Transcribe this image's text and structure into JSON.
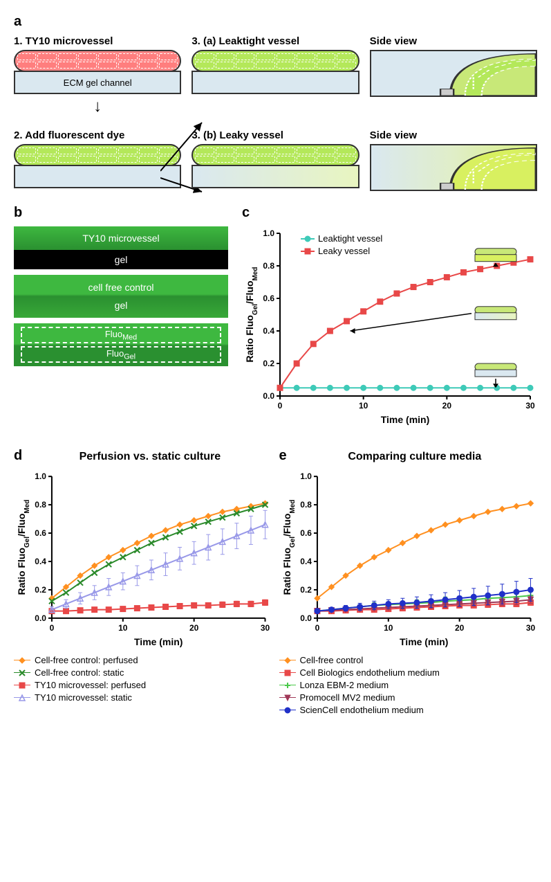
{
  "panelA": {
    "label": "a",
    "step1": {
      "title": "1. TY10 microvessel",
      "ecm_label": "ECM gel channel",
      "vessel_color": "#f88"
    },
    "step2": {
      "title": "2. Add fluorescent dye",
      "vessel_color": "#b4e85a"
    },
    "step3a": {
      "title": "3. (a) Leaktight vessel",
      "side_label": "Side view",
      "vessel_color": "#b4e85a"
    },
    "step3b": {
      "title": "3. (b) Leaky vessel",
      "side_label": "Side view",
      "vessel_color": "#b4e85a"
    }
  },
  "panelB": {
    "label": "b",
    "img1_top": "TY10 microvessel",
    "img1_bottom": "gel",
    "img2_top": "cell free control",
    "img2_bottom": "gel",
    "img3_top": "Fluo",
    "img3_top_sub": "Med",
    "img3_bottom": "Fluo",
    "img3_bottom_sub": "Gel",
    "green_bright": "#3eb840",
    "green_dark": "#1a7020"
  },
  "panelC": {
    "label": "c",
    "ylabel": "Ratio Fluo",
    "ylabel_sub1": "Gel",
    "ylabel_mid": "/Fluo",
    "ylabel_sub2": "Med",
    "xlabel": "Time (min)",
    "xlim": [
      0,
      30
    ],
    "ylim": [
      0,
      1.0
    ],
    "xtick_step": 10,
    "ytick_step": 0.2,
    "x_values": [
      0,
      2,
      4,
      6,
      8,
      10,
      12,
      14,
      16,
      18,
      20,
      22,
      24,
      26,
      28,
      30
    ],
    "series": [
      {
        "name": "Leaktight vessel",
        "color": "#3ecab8",
        "marker": "circle",
        "y": [
          0.05,
          0.05,
          0.05,
          0.05,
          0.05,
          0.05,
          0.05,
          0.05,
          0.05,
          0.05,
          0.05,
          0.05,
          0.05,
          0.05,
          0.05,
          0.05
        ]
      },
      {
        "name": "Leaky vessel",
        "color": "#e84848",
        "marker": "square",
        "y": [
          0.05,
          0.2,
          0.32,
          0.4,
          0.46,
          0.52,
          0.58,
          0.63,
          0.67,
          0.7,
          0.73,
          0.76,
          0.78,
          0.8,
          0.82,
          0.84
        ]
      }
    ]
  },
  "panelD": {
    "label": "d",
    "title": "Perfusion vs. static culture",
    "ylabel": "Ratio Fluo",
    "ylabel_sub1": "Gel",
    "ylabel_mid": "/Fluo",
    "ylabel_sub2": "Med",
    "xlabel": "Time (min)",
    "xlim": [
      0,
      30
    ],
    "ylim": [
      0,
      1.0
    ],
    "xtick_step": 10,
    "ytick_step": 0.2,
    "x_values": [
      0,
      2,
      4,
      6,
      8,
      10,
      12,
      14,
      16,
      18,
      20,
      22,
      24,
      26,
      28,
      30
    ],
    "series": [
      {
        "name": "Cell-free control: perfused",
        "color": "#ff9020",
        "marker": "diamond",
        "y": [
          0.14,
          0.22,
          0.3,
          0.37,
          0.43,
          0.48,
          0.53,
          0.58,
          0.62,
          0.66,
          0.69,
          0.72,
          0.75,
          0.77,
          0.79,
          0.81
        ],
        "err": [
          0.0,
          0.0,
          0.0,
          0.0,
          0.0,
          0.0,
          0.0,
          0.0,
          0.0,
          0.0,
          0.0,
          0.0,
          0.0,
          0.0,
          0.0,
          0.0
        ]
      },
      {
        "name": "Cell-free control: static",
        "color": "#2a8a2a",
        "marker": "x",
        "y": [
          0.12,
          0.18,
          0.25,
          0.32,
          0.38,
          0.43,
          0.48,
          0.53,
          0.57,
          0.61,
          0.65,
          0.68,
          0.71,
          0.74,
          0.77,
          0.8
        ],
        "err": [
          0.0,
          0.0,
          0.0,
          0.0,
          0.0,
          0.0,
          0.0,
          0.0,
          0.0,
          0.0,
          0.0,
          0.0,
          0.0,
          0.0,
          0.0,
          0.0
        ]
      },
      {
        "name": "TY10 microvessel: perfused",
        "color": "#e84848",
        "marker": "square",
        "y": [
          0.05,
          0.05,
          0.055,
          0.06,
          0.06,
          0.065,
          0.07,
          0.075,
          0.08,
          0.085,
          0.09,
          0.09,
          0.095,
          0.1,
          0.1,
          0.11
        ],
        "err": [
          0.01,
          0.01,
          0.01,
          0.01,
          0.01,
          0.01,
          0.01,
          0.01,
          0.01,
          0.01,
          0.01,
          0.01,
          0.02,
          0.02,
          0.02,
          0.02
        ]
      },
      {
        "name": "TY10 microvessel: static",
        "color": "#9898e8",
        "marker": "triangle",
        "y": [
          0.06,
          0.1,
          0.14,
          0.18,
          0.22,
          0.26,
          0.3,
          0.34,
          0.38,
          0.42,
          0.46,
          0.5,
          0.54,
          0.58,
          0.62,
          0.66
        ],
        "err": [
          0.02,
          0.03,
          0.04,
          0.05,
          0.06,
          0.06,
          0.07,
          0.07,
          0.08,
          0.08,
          0.08,
          0.09,
          0.09,
          0.09,
          0.1,
          0.1
        ]
      }
    ]
  },
  "panelE": {
    "label": "e",
    "title": "Comparing culture media",
    "ylabel": "Ratio Fluo",
    "ylabel_sub1": "Gel",
    "ylabel_mid": "/Fluo",
    "ylabel_sub2": "Med",
    "xlabel": "Time (min)",
    "xlim": [
      0,
      30
    ],
    "ylim": [
      0,
      1.0
    ],
    "xtick_step": 10,
    "ytick_step": 0.2,
    "x_values": [
      0,
      2,
      4,
      6,
      8,
      10,
      12,
      14,
      16,
      18,
      20,
      22,
      24,
      26,
      28,
      30
    ],
    "series": [
      {
        "name": "Cell-free control",
        "color": "#ff9020",
        "marker": "diamond",
        "y": [
          0.14,
          0.22,
          0.3,
          0.37,
          0.43,
          0.48,
          0.53,
          0.58,
          0.62,
          0.66,
          0.69,
          0.72,
          0.75,
          0.77,
          0.79,
          0.81
        ],
        "err": [
          0.0,
          0.0,
          0.0,
          0.0,
          0.0,
          0.0,
          0.0,
          0.0,
          0.0,
          0.0,
          0.0,
          0.0,
          0.0,
          0.0,
          0.0,
          0.0
        ]
      },
      {
        "name": "Cell Biologics endothelium medium",
        "color": "#e84848",
        "marker": "square",
        "y": [
          0.05,
          0.05,
          0.055,
          0.06,
          0.06,
          0.065,
          0.07,
          0.075,
          0.08,
          0.085,
          0.09,
          0.09,
          0.095,
          0.1,
          0.1,
          0.11
        ],
        "err": [
          0.01,
          0.01,
          0.01,
          0.01,
          0.01,
          0.01,
          0.01,
          0.01,
          0.01,
          0.01,
          0.01,
          0.01,
          0.02,
          0.02,
          0.02,
          0.02
        ]
      },
      {
        "name": "Lonza EBM-2 medium",
        "color": "#4ac84a",
        "marker": "plus",
        "y": [
          0.05,
          0.06,
          0.07,
          0.08,
          0.09,
          0.095,
          0.1,
          0.105,
          0.11,
          0.12,
          0.125,
          0.13,
          0.14,
          0.145,
          0.15,
          0.16
        ],
        "err": [
          0.01,
          0.01,
          0.015,
          0.015,
          0.02,
          0.02,
          0.02,
          0.025,
          0.025,
          0.03,
          0.03,
          0.03,
          0.03,
          0.035,
          0.035,
          0.04
        ]
      },
      {
        "name": "Promocell MV2 medium",
        "color": "#a03858",
        "marker": "tri-down",
        "y": [
          0.05,
          0.055,
          0.06,
          0.065,
          0.07,
          0.075,
          0.08,
          0.085,
          0.09,
          0.095,
          0.1,
          0.105,
          0.11,
          0.115,
          0.12,
          0.13
        ],
        "err": [
          0.01,
          0.01,
          0.01,
          0.01,
          0.01,
          0.015,
          0.015,
          0.015,
          0.02,
          0.02,
          0.02,
          0.02,
          0.02,
          0.025,
          0.025,
          0.025
        ]
      },
      {
        "name": "ScienCell endothelium medium",
        "color": "#2030c8",
        "marker": "circle",
        "y": [
          0.05,
          0.06,
          0.07,
          0.08,
          0.09,
          0.1,
          0.105,
          0.11,
          0.12,
          0.13,
          0.14,
          0.15,
          0.16,
          0.17,
          0.185,
          0.2
        ],
        "err": [
          0.01,
          0.015,
          0.02,
          0.025,
          0.03,
          0.03,
          0.035,
          0.04,
          0.045,
          0.05,
          0.055,
          0.06,
          0.065,
          0.07,
          0.075,
          0.08
        ]
      }
    ]
  }
}
